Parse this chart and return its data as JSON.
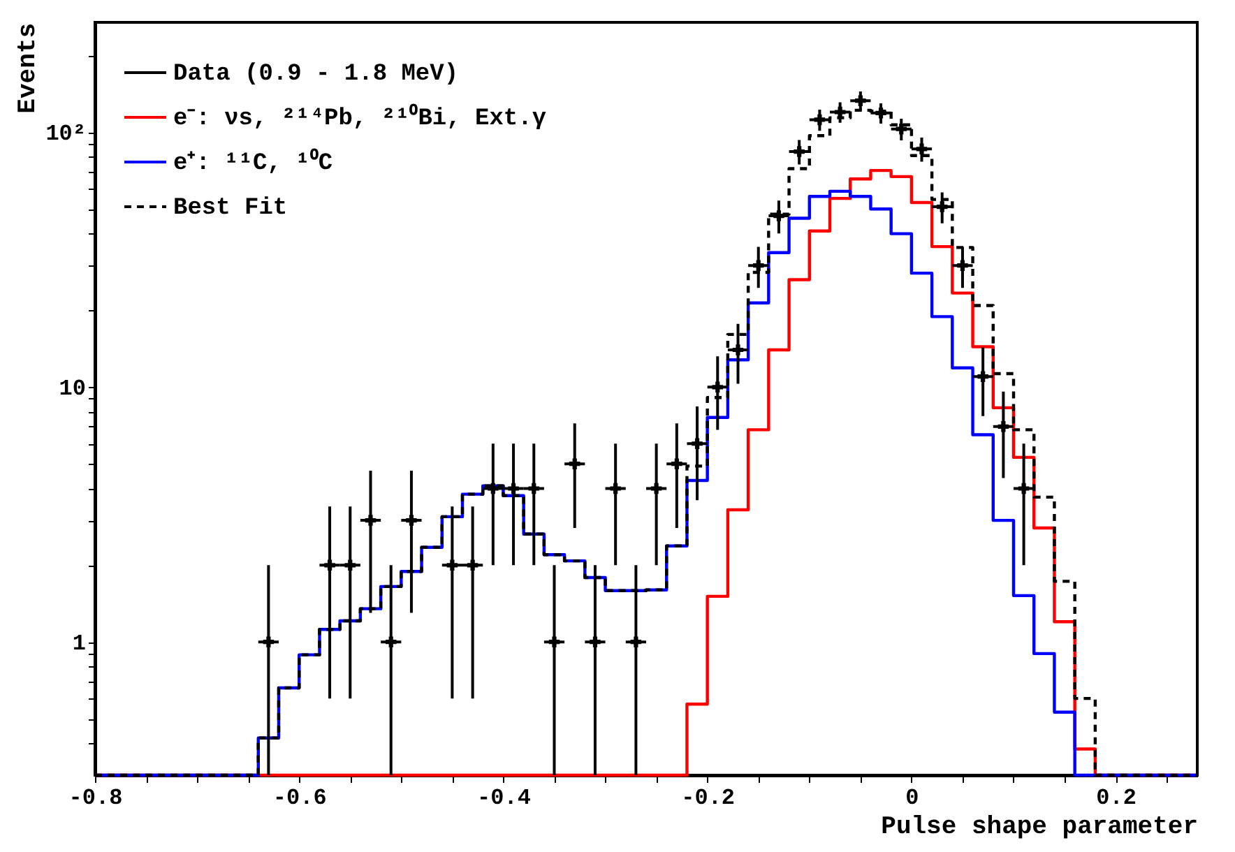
{
  "chart_data": {
    "type": "histogram",
    "xlabel": "Pulse shape parameter",
    "ylabel": "Events",
    "log": true,
    "grid": false,
    "legend": "top left",
    "bins": [
      -0.8,
      -0.78,
      -0.76,
      -0.74,
      -0.72,
      -0.7,
      -0.68,
      -0.66,
      -0.64,
      -0.62,
      -0.6,
      -0.58,
      -0.56,
      -0.54,
      -0.52,
      -0.5,
      -0.48,
      -0.46,
      -0.44,
      -0.42,
      -0.4,
      -0.38,
      -0.36,
      -0.34,
      -0.32,
      -0.3,
      -0.28,
      -0.26,
      -0.24,
      -0.22,
      -0.2,
      -0.18,
      -0.16,
      -0.14,
      -0.12,
      -0.1,
      -0.08,
      -0.06,
      -0.04,
      -0.02,
      0,
      0.02,
      0.04,
      0.06,
      0.08,
      0.1,
      0.12,
      0.14,
      0.16,
      0.18,
      0.2,
      0.22,
      0.24,
      0.26,
      0.28
    ],
    "xlim": [
      -0.8,
      0.28
    ],
    "xticks": [
      -0.8,
      {
        "value": -0.75,
        "label": null
      },
      {
        "value": -0.7,
        "label": null
      },
      {
        "value": -0.65,
        "label": null
      },
      -0.6,
      {
        "value": -0.55,
        "label": null
      },
      {
        "value": -0.5,
        "label": null
      },
      {
        "value": -0.45,
        "label": null
      },
      -0.4,
      {
        "value": -0.35,
        "label": null
      },
      {
        "value": -0.3,
        "label": null
      },
      {
        "value": -0.25,
        "label": null
      },
      -0.2,
      {
        "value": -0.15,
        "label": null
      },
      {
        "value": -0.1,
        "label": null
      },
      {
        "value": -0.05,
        "label": null
      },
      0,
      {
        "value": 0.05,
        "label": null
      },
      {
        "value": 0.1,
        "label": null
      },
      {
        "value": 0.15,
        "label": null
      },
      0.2,
      {
        "value": 0.25,
        "label": null
      }
    ],
    "ylim": [
      0.3,
      270
    ],
    "yticks": [
      {
        "value": 0.4,
        "label": null
      },
      {
        "value": 0.5,
        "label": null
      },
      {
        "value": 0.6,
        "label": null
      },
      {
        "value": 0.7,
        "label": null
      },
      {
        "value": 0.8,
        "label": null
      },
      {
        "value": 0.9,
        "label": null
      },
      1,
      {
        "value": 2,
        "label": null
      },
      {
        "value": 3,
        "label": null
      },
      {
        "value": 4,
        "label": null
      },
      {
        "value": 5,
        "label": null
      },
      {
        "value": 6,
        "label": null
      },
      {
        "value": 7,
        "label": null
      },
      {
        "value": 8,
        "label": null
      },
      {
        "value": 9,
        "label": null
      },
      10,
      {
        "value": 20,
        "label": null
      },
      {
        "value": 30,
        "label": null
      },
      {
        "value": 40,
        "label": null
      },
      {
        "value": 50,
        "label": null
      },
      {
        "value": 60,
        "label": null
      },
      {
        "value": 70,
        "label": null
      },
      {
        "value": 80,
        "label": null
      },
      {
        "value": 90,
        "label": null
      },
      {
        "value": 100,
        "label": "10²"
      },
      {
        "value": 200,
        "label": null
      }
    ],
    "series": [
      {
        "name": "Data (0.9 - 1.8 MeV)",
        "type": "scatter",
        "marker": "cross",
        "color": "#000000",
        "x": [
          -0.63,
          -0.57,
          -0.55,
          -0.53,
          -0.51,
          -0.49,
          -0.45,
          -0.43,
          -0.41,
          -0.39,
          -0.37,
          -0.35,
          -0.33,
          -0.31,
          -0.29,
          -0.27,
          -0.25,
          -0.23,
          -0.21,
          -0.19,
          -0.17,
          -0.15,
          -0.13,
          -0.11,
          -0.09,
          -0.07,
          -0.05,
          -0.03,
          -0.01,
          0.01,
          0.03,
          0.05,
          0.07,
          0.09,
          0.11
        ],
        "values": [
          1,
          2,
          2,
          3,
          1,
          3,
          2,
          2,
          4,
          4,
          4,
          1,
          5,
          1,
          4,
          1,
          4,
          5,
          6,
          10,
          14,
          30,
          47,
          84,
          112,
          120,
          133,
          119,
          103,
          86,
          51,
          30,
          11,
          7,
          4
        ],
        "errors": [
          [
            0.3,
            2
          ],
          1.4,
          1.4,
          1.7,
          [
            0.3,
            2
          ],
          1.7,
          1.4,
          1.4,
          2,
          2,
          2,
          [
            0.3,
            2
          ],
          2.2,
          [
            0.3,
            2
          ],
          2,
          [
            0.3,
            2
          ],
          2,
          2.2,
          2.4,
          3.2,
          3.7,
          5.5,
          6.9,
          9.2,
          10.6,
          11,
          11.5,
          10.9,
          10.1,
          9.3,
          7.1,
          5.5,
          3.3,
          2.6,
          2
        ],
        "xerrors": [
          0.01,
          0.01,
          0.01,
          0.01,
          0.01,
          0.01,
          0.01,
          0.01,
          0.01,
          0.01,
          0.01,
          0.01,
          0.01,
          0.01,
          0.01,
          0.01,
          0.01,
          0.01,
          0.01,
          0.01,
          0.01,
          0.01,
          0.01,
          0.01,
          0.01,
          0.01,
          0.01,
          0.01,
          0.01,
          0.01,
          0.01,
          0.01,
          0.01,
          0.01,
          0.01
        ]
      },
      {
        "name": "e⁻: νs, ²¹⁴Pb, ²¹⁰Bi, Ext.γ",
        "color": "#ff0000",
        "values": [
          null,
          null,
          null,
          null,
          null,
          null,
          null,
          null,
          null,
          null,
          null,
          null,
          null,
          null,
          null,
          null,
          null,
          null,
          null,
          null,
          null,
          null,
          null,
          null,
          null,
          null,
          null,
          null,
          null,
          0.57,
          1.51,
          3.3,
          6.8,
          14,
          26.4,
          41,
          55,
          65.6,
          70.8,
          67,
          53,
          35.6,
          23.4,
          14.4,
          8.3,
          5.3,
          2.8,
          1.2,
          0.38,
          null,
          null,
          null,
          null,
          null
        ]
      },
      {
        "name": "e⁺: ¹¹C, ¹⁰C",
        "color": "#0000ff",
        "values": [
          null,
          null,
          null,
          null,
          null,
          null,
          null,
          null,
          0.42,
          0.66,
          0.89,
          1.12,
          1.21,
          1.35,
          1.65,
          1.89,
          2.35,
          3.1,
          3.8,
          4.1,
          3.75,
          2.65,
          2.2,
          2.08,
          1.79,
          1.59,
          1.59,
          1.6,
          2.38,
          4.3,
          7.6,
          12.8,
          21.4,
          33.7,
          46,
          56,
          58.7,
          56,
          50,
          40,
          28,
          18.9,
          11.9,
          6.5,
          3.0,
          1.52,
          0.9,
          0.53,
          null,
          null,
          null,
          null,
          null,
          null
        ]
      },
      {
        "name": "Best Fit",
        "line_style": "dashed",
        "color": "#000000",
        "values": [
          null,
          null,
          null,
          null,
          null,
          null,
          null,
          null,
          0.42,
          0.66,
          0.89,
          1.12,
          1.21,
          1.35,
          1.65,
          1.89,
          2.35,
          3.1,
          3.8,
          4.1,
          3.75,
          2.65,
          2.2,
          2.08,
          1.79,
          1.59,
          1.59,
          1.6,
          2.38,
          4.9,
          9.1,
          16.1,
          28.2,
          47.7,
          72,
          97,
          114,
          122,
          121,
          107,
          81,
          54.5,
          35.3,
          20.9,
          11.3,
          6.8,
          3.7,
          1.73,
          0.6,
          null,
          null,
          null,
          null,
          null
        ]
      }
    ]
  }
}
